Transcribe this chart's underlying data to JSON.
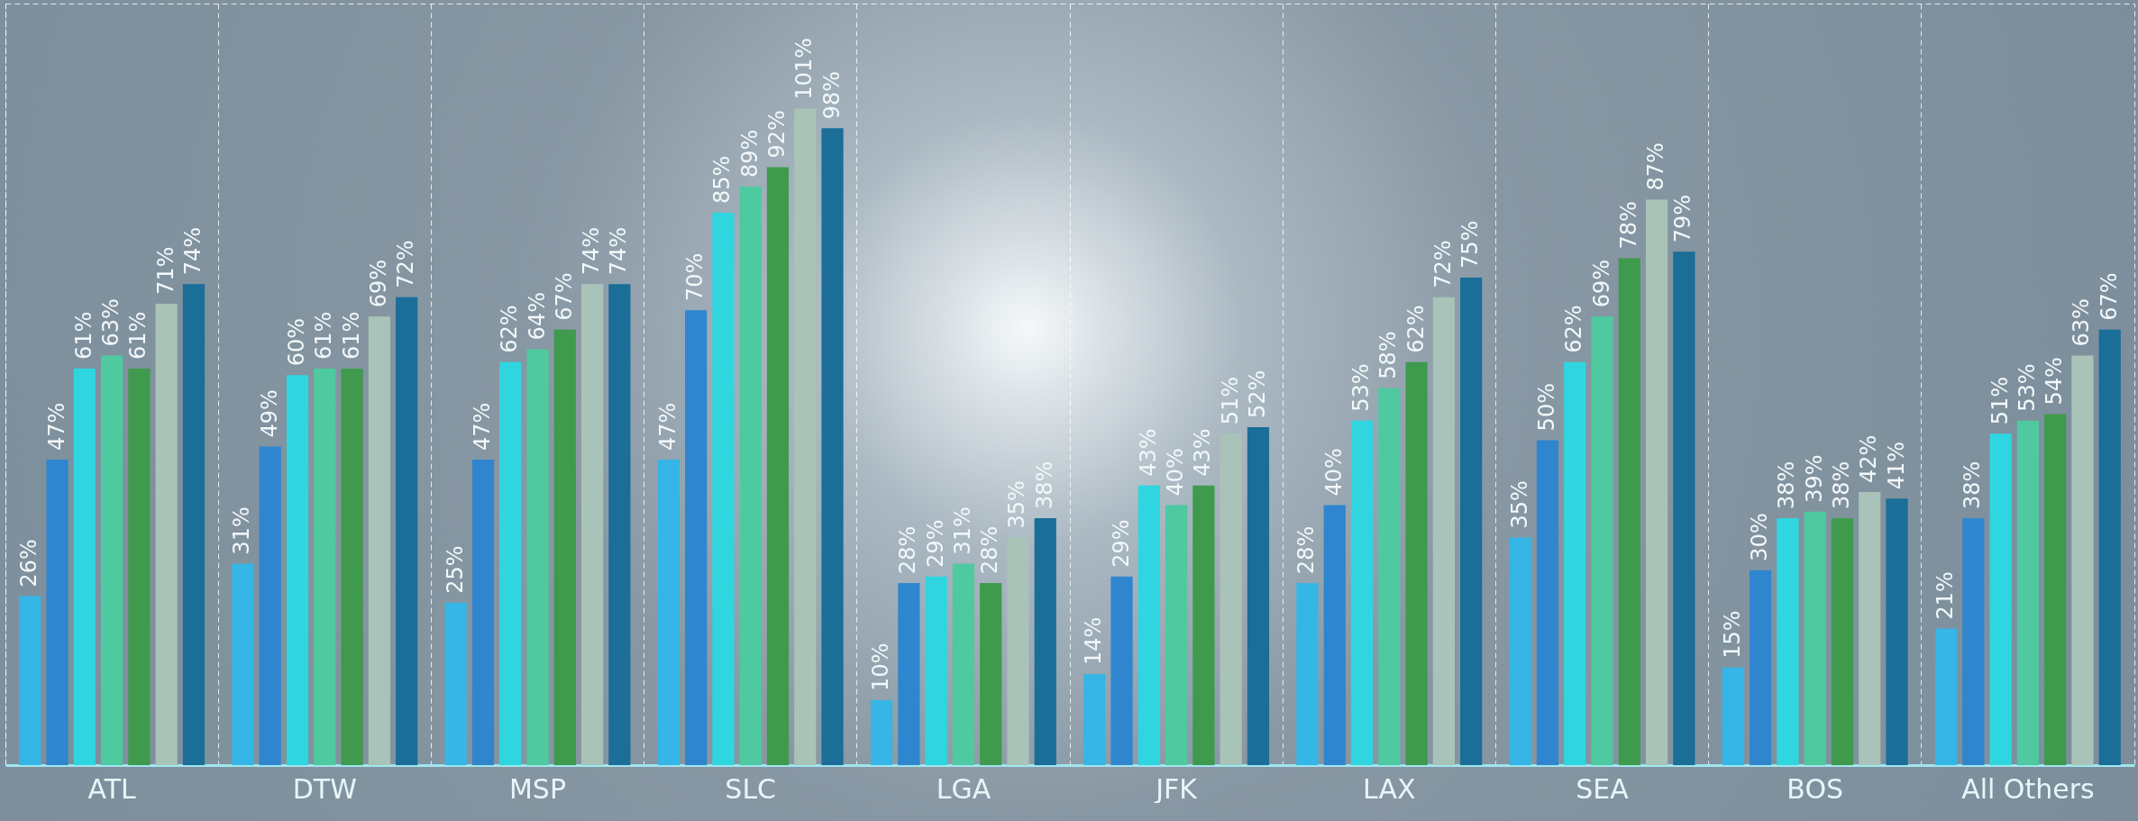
{
  "chart_data": {
    "type": "bar",
    "categories": [
      "ATL",
      "DTW",
      "MSP",
      "SLC",
      "LGA",
      "JFK",
      "LAX",
      "SEA",
      "BOS",
      "All Others"
    ],
    "grid": "x",
    "series": [
      {
        "color": "#35b6e6",
        "values": [
          26,
          31,
          25,
          47,
          10,
          14,
          28,
          35,
          15,
          21
        ],
        "value_labels": [
          "26%",
          "31%",
          "25%",
          "47%",
          "10%",
          "14%",
          "28%",
          "35%",
          "15%",
          "21%"
        ]
      },
      {
        "color": "#2f86cf",
        "values": [
          47,
          49,
          47,
          70,
          28,
          29,
          40,
          50,
          30,
          38
        ],
        "value_labels": [
          "47%",
          "49%",
          "47%",
          "70%",
          "28%",
          "29%",
          "40%",
          "50%",
          "30%",
          "38%"
        ]
      },
      {
        "color": "#2fd6e0",
        "values": [
          61,
          60,
          62,
          85,
          29,
          43,
          53,
          62,
          38,
          51
        ],
        "value_labels": [
          "61%",
          "60%",
          "62%",
          "85%",
          "29%",
          "43%",
          "53%",
          "62%",
          "38%",
          "51%"
        ]
      },
      {
        "color": "#4ec9a0",
        "values": [
          63,
          61,
          64,
          89,
          31,
          40,
          58,
          69,
          39,
          53
        ],
        "value_labels": [
          "63%",
          "61%",
          "64%",
          "89%",
          "31%",
          "40%",
          "58%",
          "69%",
          "39%",
          "53%"
        ]
      },
      {
        "color": "#3f9a4e",
        "values": [
          61,
          61,
          67,
          92,
          28,
          43,
          62,
          78,
          38,
          54
        ],
        "value_labels": [
          "61%",
          "61%",
          "67%",
          "92%",
          "28%",
          "43%",
          "62%",
          "78%",
          "38%",
          "54%"
        ]
      },
      {
        "color": "#a9c3b8",
        "values": [
          71,
          69,
          74,
          101,
          35,
          51,
          72,
          87,
          42,
          63
        ],
        "value_labels": [
          "71%",
          "69%",
          "74%",
          "101%",
          "35%",
          "51%",
          "72%",
          "87%",
          "42%",
          "63%"
        ]
      },
      {
        "color": "#1a6e98",
        "values": [
          74,
          72,
          74,
          98,
          38,
          52,
          75,
          79,
          41,
          67
        ],
        "value_labels": [
          "74%",
          "72%",
          "74%",
          "98%",
          "38%",
          "52%",
          "75%",
          "79%",
          "41%",
          "67%"
        ]
      }
    ]
  }
}
